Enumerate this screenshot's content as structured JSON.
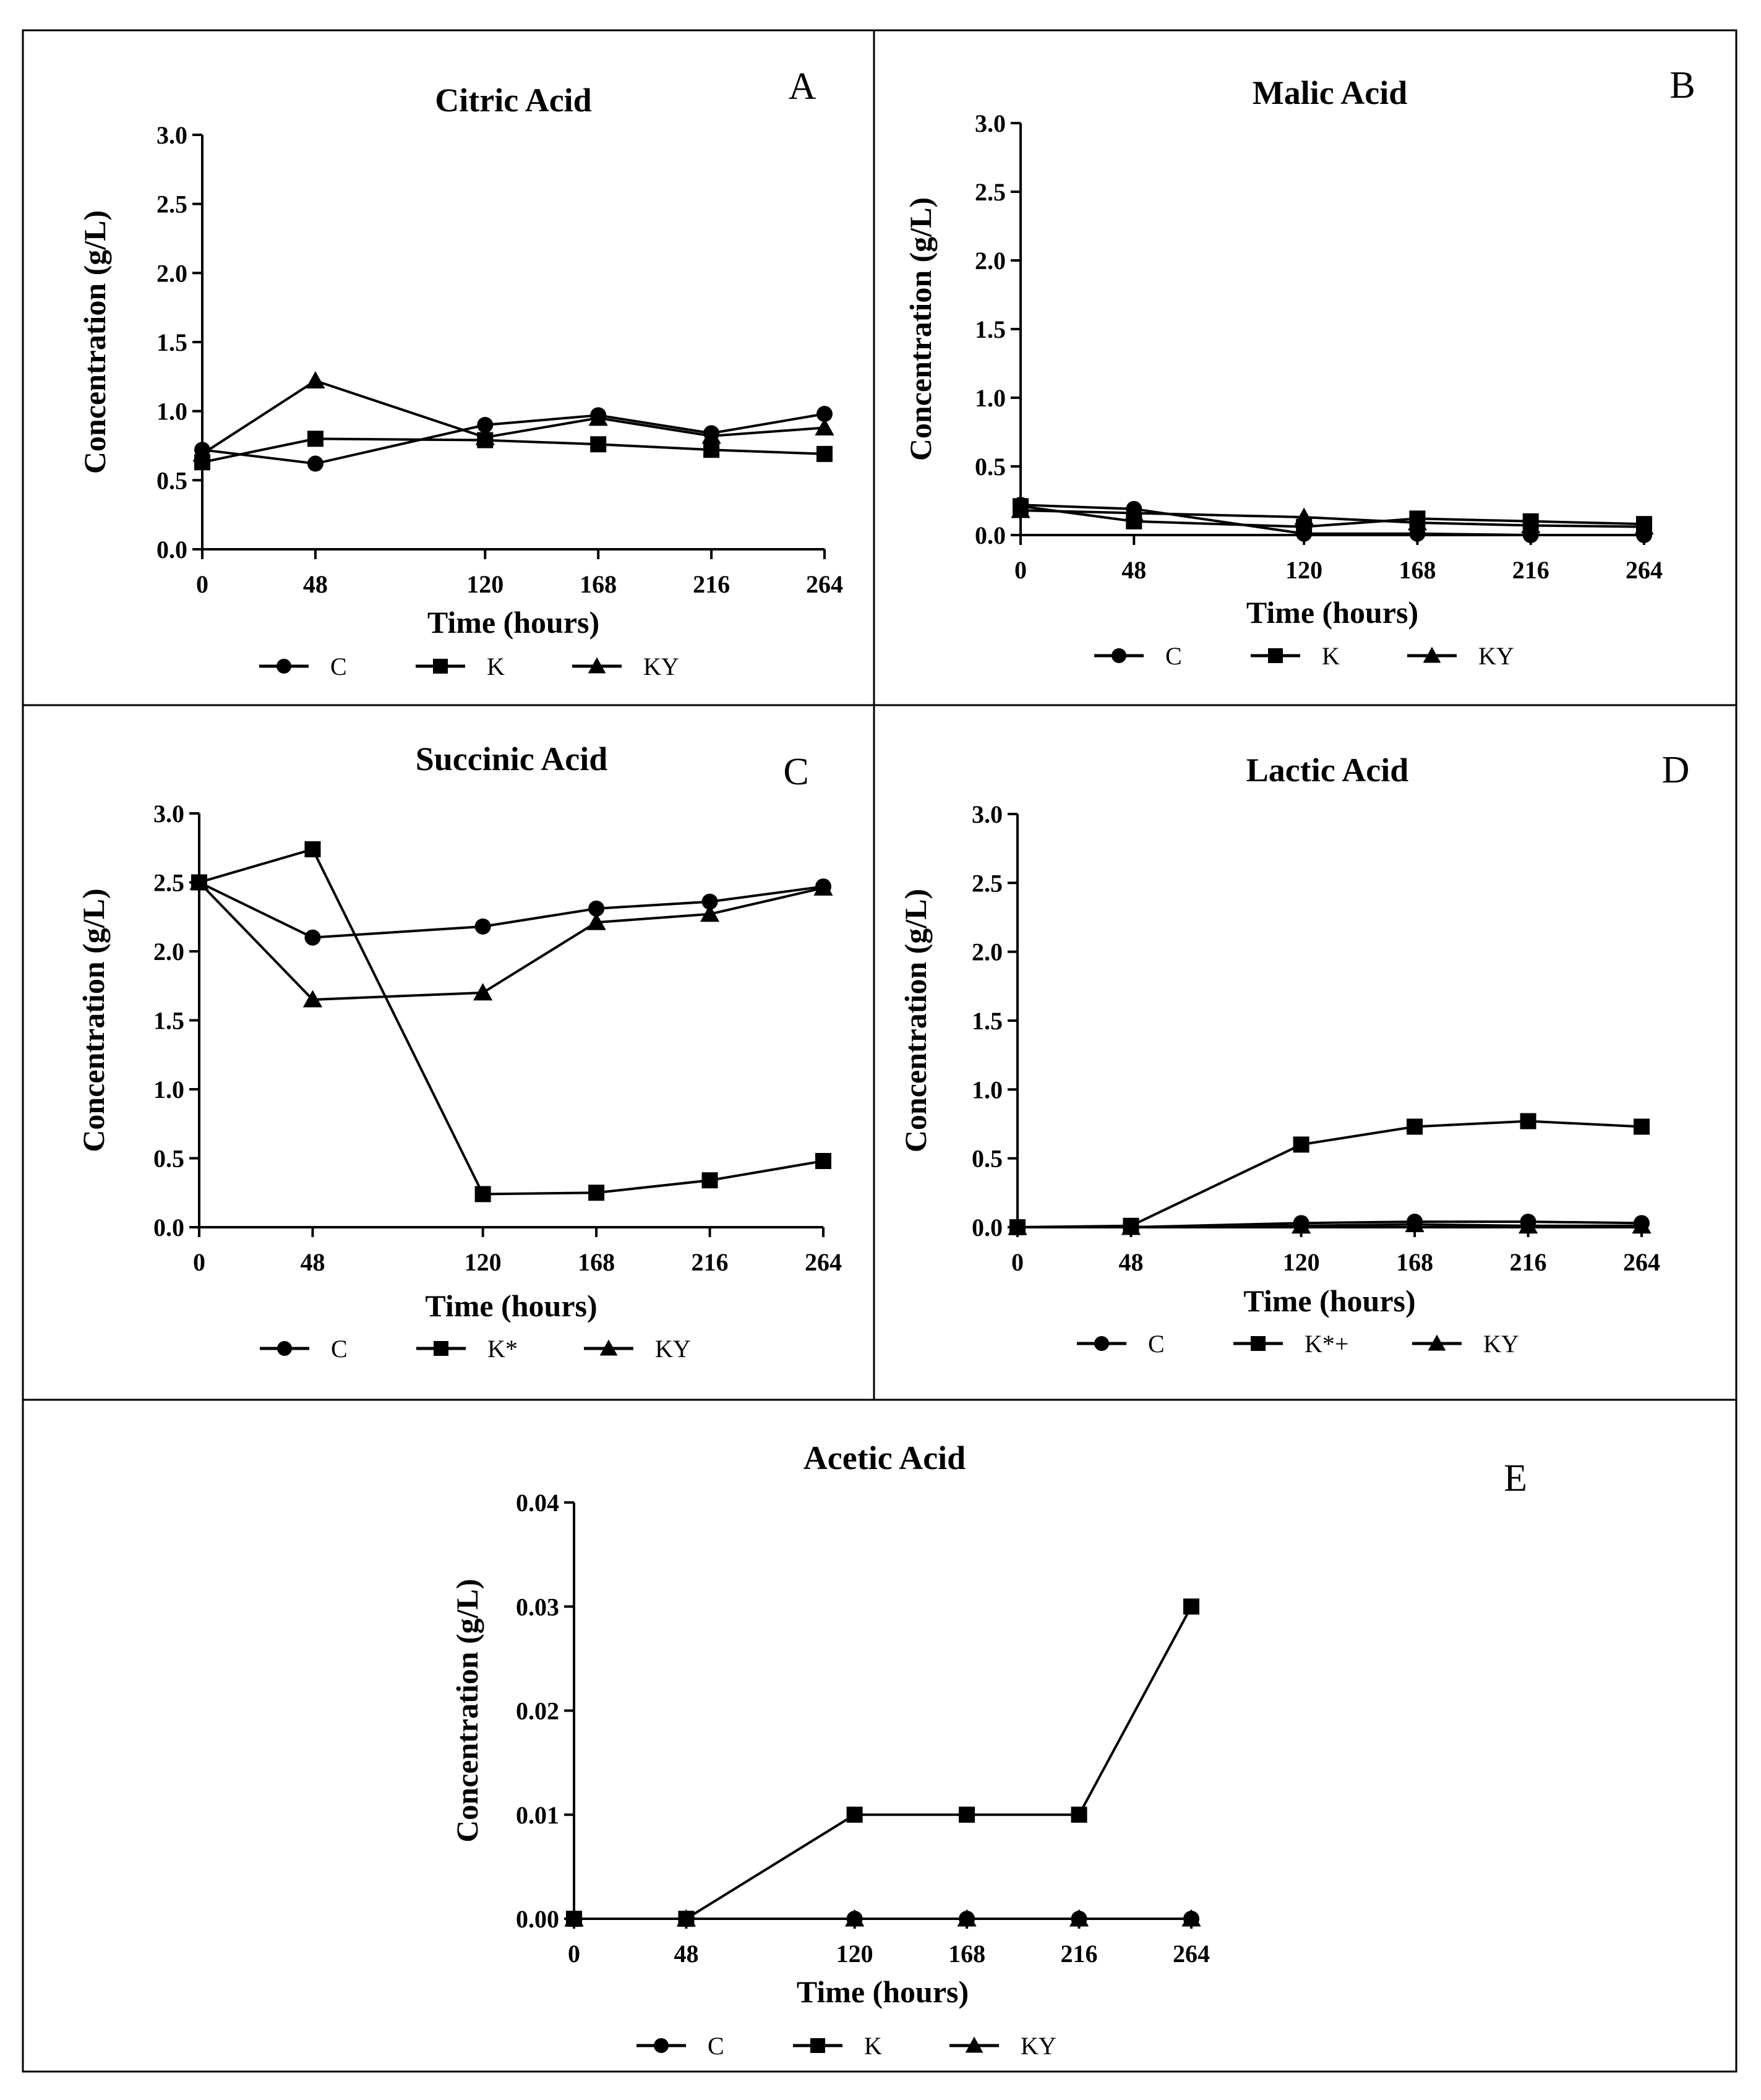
{
  "figure": {
    "panel_letters": [
      "A",
      "B",
      "C",
      "D",
      "E"
    ]
  },
  "chart_data": [
    {
      "id": "A",
      "type": "line",
      "title": "Citric Acid",
      "xlabel": "Time (hours)",
      "ylabel": "Concentration (g/L)",
      "x": [
        0,
        48,
        120,
        168,
        216,
        264
      ],
      "xticks": [
        "0",
        "48",
        "120",
        "168",
        "216",
        "264"
      ],
      "ylim": [
        0,
        3.0
      ],
      "yticks": [
        "0.0",
        "0.5",
        "1.0",
        "1.5",
        "2.0",
        "2.5",
        "3.0"
      ],
      "legend_position": "bottom-center",
      "series": [
        {
          "name": "C",
          "marker": "circle",
          "values": [
            0.72,
            0.62,
            0.9,
            0.97,
            0.84,
            0.98
          ]
        },
        {
          "name": "K",
          "marker": "square",
          "values": [
            0.63,
            0.8,
            0.79,
            0.76,
            0.72,
            0.69
          ]
        },
        {
          "name": "KY",
          "marker": "triangle",
          "values": [
            0.69,
            1.22,
            0.81,
            0.95,
            0.82,
            0.88
          ]
        }
      ]
    },
    {
      "id": "B",
      "type": "line",
      "title": "Malic Acid",
      "xlabel": "Time (hours)",
      "ylabel": "Concentration (g/L)",
      "x": [
        0,
        48,
        120,
        168,
        216,
        264
      ],
      "xticks": [
        "0",
        "48",
        "120",
        "168",
        "216",
        "264"
      ],
      "ylim": [
        0,
        3.0
      ],
      "yticks": [
        "0.0",
        "0.5",
        "1.0",
        "1.5",
        "2.0",
        "2.5",
        "3.0"
      ],
      "legend_position": "bottom-center",
      "series": [
        {
          "name": "C",
          "marker": "circle",
          "values": [
            0.22,
            0.19,
            0.01,
            0.01,
            0.0,
            0.0
          ]
        },
        {
          "name": "K",
          "marker": "square",
          "values": [
            0.21,
            0.1,
            0.06,
            0.12,
            0.1,
            0.08
          ]
        },
        {
          "name": "KY",
          "marker": "triangle",
          "values": [
            0.18,
            0.16,
            0.13,
            0.09,
            0.07,
            0.06
          ]
        }
      ]
    },
    {
      "id": "C",
      "type": "line",
      "title": "Succinic Acid",
      "xlabel": "Time (hours)",
      "ylabel": "Concentration (g/L)",
      "x": [
        0,
        48,
        120,
        168,
        216,
        264
      ],
      "xticks": [
        "0",
        "48",
        "120",
        "168",
        "216",
        "264"
      ],
      "ylim": [
        0,
        3.0
      ],
      "yticks": [
        "0.0",
        "0.5",
        "1.0",
        "1.5",
        "2.0",
        "2.5",
        "3.0"
      ],
      "legend_position": "bottom-center",
      "series": [
        {
          "name": "C",
          "marker": "circle",
          "values": [
            2.5,
            2.1,
            2.18,
            2.31,
            2.36,
            2.47
          ]
        },
        {
          "name": "K*",
          "marker": "square",
          "values": [
            2.5,
            2.74,
            0.24,
            0.25,
            0.34,
            0.48
          ]
        },
        {
          "name": "KY",
          "marker": "triangle",
          "values": [
            2.5,
            1.65,
            1.7,
            2.21,
            2.27,
            2.46
          ]
        }
      ]
    },
    {
      "id": "D",
      "type": "line",
      "title": "Lactic Acid",
      "xlabel": "Time (hours)",
      "ylabel": "Concentration (g/L)",
      "x": [
        0,
        48,
        120,
        168,
        216,
        264
      ],
      "xticks": [
        "0",
        "48",
        "120",
        "168",
        "216",
        "264"
      ],
      "ylim": [
        0,
        3.0
      ],
      "yticks": [
        "0.0",
        "0.5",
        "1.0",
        "1.5",
        "2.0",
        "2.5",
        "3.0"
      ],
      "legend_position": "bottom-center",
      "series": [
        {
          "name": "C",
          "marker": "circle",
          "values": [
            0.0,
            0.0,
            0.03,
            0.04,
            0.04,
            0.03
          ]
        },
        {
          "name": "K*+",
          "marker": "square",
          "values": [
            0.0,
            0.01,
            0.6,
            0.73,
            0.77,
            0.73
          ]
        },
        {
          "name": "KY",
          "marker": "triangle",
          "values": [
            0.0,
            0.0,
            0.01,
            0.02,
            0.01,
            0.01
          ]
        }
      ]
    },
    {
      "id": "E",
      "type": "line",
      "title": "Acetic Acid",
      "xlabel": "Time (hours)",
      "ylabel": "Concentration (g/L)",
      "x": [
        0,
        48,
        120,
        168,
        216,
        264
      ],
      "xticks": [
        "0",
        "48",
        "120",
        "168",
        "216",
        "264"
      ],
      "ylim": [
        0,
        0.04
      ],
      "yticks": [
        "0.00",
        "0.01",
        "0.02",
        "0.03",
        "0.04"
      ],
      "legend_position": "bottom-center",
      "series": [
        {
          "name": "C",
          "marker": "circle",
          "values": [
            0.0,
            0.0,
            0.0,
            0.0,
            0.0,
            0.0
          ]
        },
        {
          "name": "K",
          "marker": "square",
          "values": [
            0.0,
            0.0,
            0.01,
            0.01,
            0.01,
            0.03
          ]
        },
        {
          "name": "KY",
          "marker": "triangle",
          "values": [
            0.0,
            0.0,
            0.0,
            0.0,
            0.0,
            0.0
          ]
        }
      ]
    }
  ]
}
